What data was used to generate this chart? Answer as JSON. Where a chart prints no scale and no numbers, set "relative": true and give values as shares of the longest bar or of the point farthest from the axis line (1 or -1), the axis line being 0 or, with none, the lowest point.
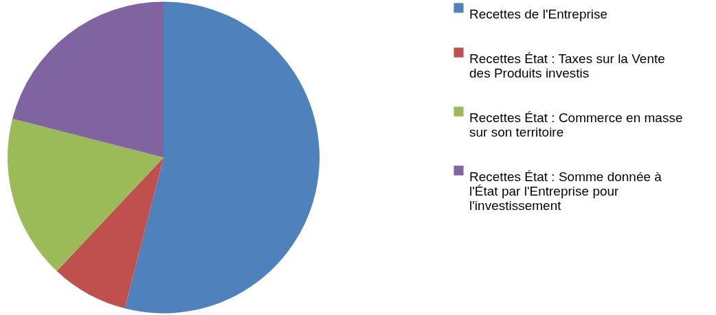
{
  "chart_data": {
    "type": "pie",
    "relative": true,
    "categories": [
      "Recettes de l'Entreprise",
      "Recettes État : Taxes sur la Vente des Produits investis",
      "Recettes État : Commerce en masse sur son territoire",
      "Recettes État : Somme donnée à l'État par l'Entreprise pour l'investissement"
    ],
    "values": [
      54,
      8,
      17,
      21
    ],
    "colors": [
      "#4f81bd",
      "#c0504d",
      "#9bbb59",
      "#8064a2"
    ],
    "legend": "right"
  }
}
